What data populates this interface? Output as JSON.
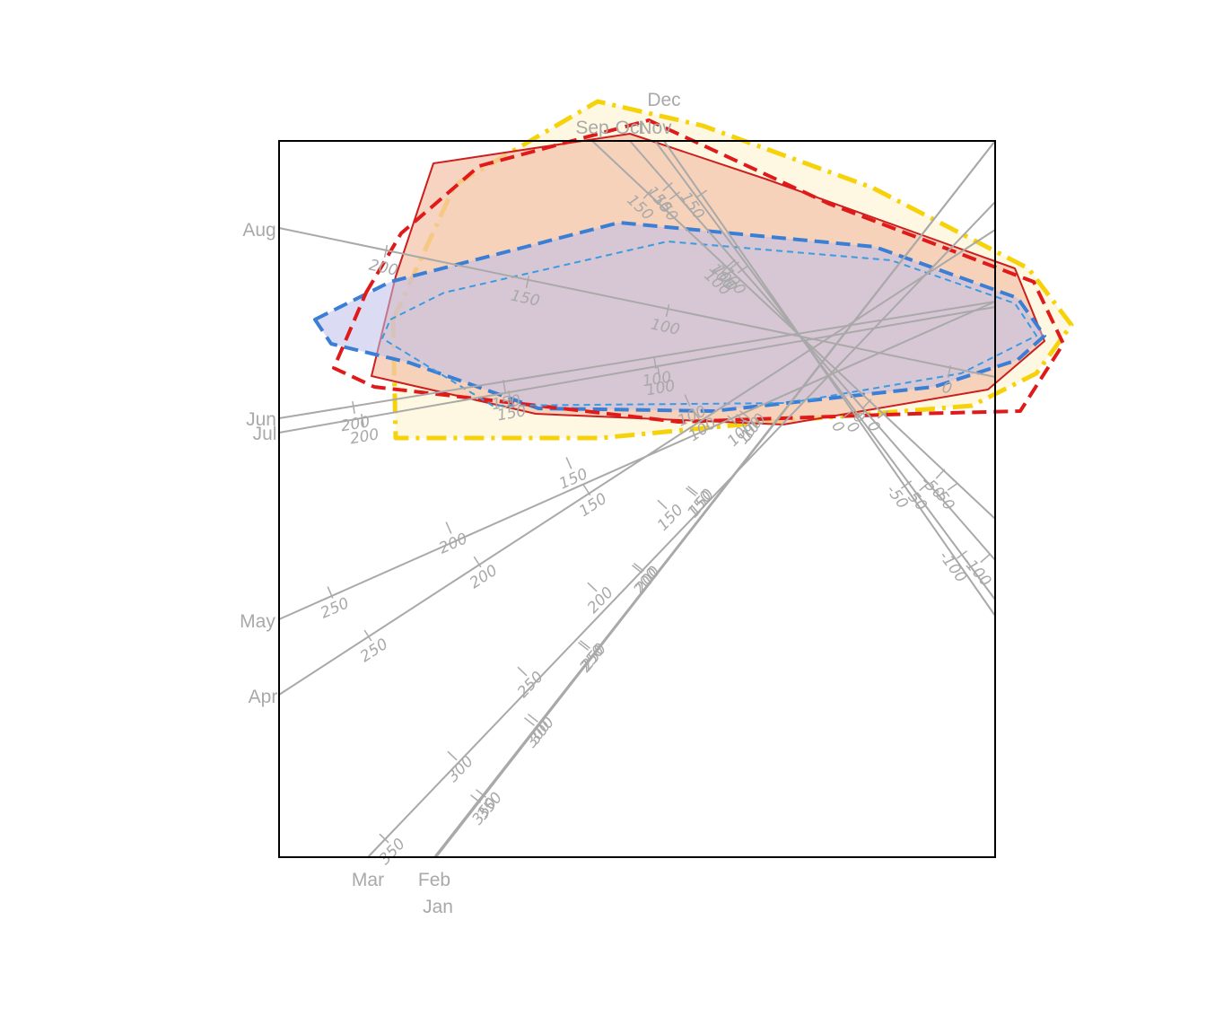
{
  "chart_data": {
    "type": "biplot",
    "title": "",
    "frame": true,
    "axes": [
      {
        "name": "Jan",
        "ticks": [
          {
            "label": "350"
          },
          {
            "label": "300"
          },
          {
            "label": "250"
          },
          {
            "label": "200"
          },
          {
            "label": "150"
          },
          {
            "label": "100"
          }
        ]
      },
      {
        "name": "Feb",
        "ticks": [
          {
            "label": "350"
          },
          {
            "label": "300"
          },
          {
            "label": "250"
          },
          {
            "label": "200"
          },
          {
            "label": "150"
          },
          {
            "label": "100"
          }
        ]
      },
      {
        "name": "Mar",
        "ticks": [
          {
            "label": "350"
          },
          {
            "label": "300"
          },
          {
            "label": "250"
          },
          {
            "label": "200"
          },
          {
            "label": "150"
          },
          {
            "label": "100"
          }
        ]
      },
      {
        "name": "Apr",
        "ticks": [
          {
            "label": "250"
          },
          {
            "label": "200"
          },
          {
            "label": "150"
          },
          {
            "label": "100"
          }
        ]
      },
      {
        "name": "May",
        "ticks": [
          {
            "label": "250"
          },
          {
            "label": "200"
          },
          {
            "label": "150"
          },
          {
            "label": "100"
          }
        ]
      },
      {
        "name": "Jun",
        "ticks": [
          {
            "label": "200"
          },
          {
            "label": "150"
          },
          {
            "label": "100"
          }
        ]
      },
      {
        "name": "Jul",
        "ticks": [
          {
            "label": "200"
          },
          {
            "label": "150"
          },
          {
            "label": "100"
          }
        ]
      },
      {
        "name": "Aug",
        "ticks": [
          {
            "label": "200"
          },
          {
            "label": "150"
          },
          {
            "label": "100"
          },
          {
            "label": "0"
          }
        ]
      },
      {
        "name": "Sep",
        "ticks": [
          {
            "label": "150"
          },
          {
            "label": "100"
          },
          {
            "label": "0"
          },
          {
            "label": "-50"
          }
        ]
      },
      {
        "name": "Oct",
        "ticks": [
          {
            "label": "150"
          },
          {
            "label": "100"
          },
          {
            "label": "0"
          },
          {
            "label": "-50"
          },
          {
            "label": "-100"
          }
        ]
      },
      {
        "name": "Nov",
        "ticks": [
          {
            "label": "150"
          },
          {
            "label": "100"
          },
          {
            "label": "0"
          },
          {
            "label": "-50"
          },
          {
            "label": "-100"
          }
        ]
      },
      {
        "name": "Dec",
        "ticks": [
          {
            "label": "150"
          },
          {
            "label": "100"
          },
          {
            "label": "0"
          },
          {
            "label": "-50"
          }
        ]
      }
    ],
    "regions": [
      {
        "group": "1",
        "fill": "#f4c6ad",
        "stroke": "#cc1f1f",
        "line_style": "solid",
        "polygon": [
          [
            -1.5,
            0.24
          ],
          [
            -1.36,
            0.66
          ],
          [
            -0.63,
            0.77
          ],
          [
            -0.12,
            0.6
          ],
          [
            0.8,
            0.27
          ],
          [
            0.91,
            0.0
          ],
          [
            0.7,
            -0.18
          ],
          [
            -0.06,
            -0.31
          ],
          [
            -0.98,
            -0.27
          ],
          [
            -1.59,
            -0.13
          ]
        ]
      },
      {
        "group": "1",
        "fill": "none",
        "stroke": "#e01a1a",
        "line_style": "dashed",
        "polygon": [
          [
            -1.61,
            0.18
          ],
          [
            -1.48,
            0.4
          ],
          [
            -1.19,
            0.65
          ],
          [
            -0.56,
            0.82
          ],
          [
            0.11,
            0.51
          ],
          [
            0.87,
            0.22
          ],
          [
            0.98,
            -0.01
          ],
          [
            0.82,
            -0.26
          ],
          [
            0.42,
            -0.27
          ],
          [
            -0.45,
            -0.3
          ],
          [
            -1.58,
            -0.17
          ],
          [
            -1.73,
            -0.1
          ]
        ]
      },
      {
        "group": "2",
        "fill": "#fdf6d8",
        "stroke": "#f5d20a",
        "line_style": "dashdot",
        "polygon": [
          [
            -1.51,
            0.08
          ],
          [
            -1.28,
            0.58
          ],
          [
            -0.75,
            0.89
          ],
          [
            -0.36,
            0.8
          ],
          [
            0.27,
            0.57
          ],
          [
            0.85,
            0.27
          ],
          [
            1.01,
            0.06
          ],
          [
            0.88,
            -0.12
          ],
          [
            0.64,
            -0.24
          ],
          [
            -0.11,
            -0.3
          ],
          [
            -0.74,
            -0.36
          ],
          [
            -1.5,
            -0.36
          ]
        ]
      },
      {
        "group": "3",
        "fill": "#bdbdeb",
        "stroke": "#3a7fd5",
        "line_style": "dashed",
        "polygon": [
          [
            -1.8,
            0.08
          ],
          [
            -1.52,
            0.22
          ],
          [
            -0.67,
            0.44
          ],
          [
            0.28,
            0.35
          ],
          [
            0.81,
            0.16
          ],
          [
            0.91,
            0.02
          ],
          [
            0.81,
            -0.07
          ],
          [
            0.5,
            -0.17
          ],
          [
            -0.32,
            -0.26
          ],
          [
            -0.97,
            -0.25
          ],
          [
            -1.45,
            -0.08
          ],
          [
            -1.74,
            -0.01
          ]
        ]
      },
      {
        "group": "3",
        "fill": "none",
        "stroke": "#3a9be0",
        "line_style": "dashed_thin",
        "polygon": [
          [
            -1.52,
            0.08
          ],
          [
            -1.32,
            0.18
          ],
          [
            -0.49,
            0.37
          ],
          [
            0.34,
            0.3
          ],
          [
            0.8,
            0.14
          ],
          [
            0.88,
            0.02
          ],
          [
            0.6,
            -0.12
          ],
          [
            -0.04,
            -0.23
          ],
          [
            -1.14,
            -0.24
          ],
          [
            -1.55,
            0.01
          ]
        ]
      }
    ]
  }
}
